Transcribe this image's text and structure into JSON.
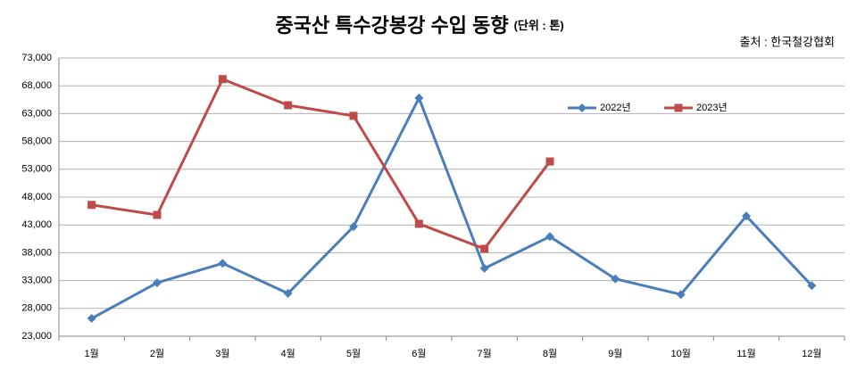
{
  "chart_data": {
    "type": "line",
    "title": "중국산 특수강봉강 수입 동향",
    "unit_label": "(단위 : 톤)",
    "source": "출처 : 한국철강협회",
    "categories": [
      "1월",
      "2월",
      "3월",
      "4월",
      "5월",
      "6월",
      "7월",
      "8월",
      "9월",
      "10월",
      "11월",
      "12월"
    ],
    "series": [
      {
        "name": "2022년",
        "color": "#4a7ebb",
        "marker": "diamond",
        "values": [
          26200,
          32600,
          36100,
          30700,
          42700,
          65800,
          35200,
          40900,
          33300,
          30500,
          44600,
          32100
        ]
      },
      {
        "name": "2023년",
        "color": "#be4b48",
        "marker": "square",
        "values": [
          46600,
          44800,
          69200,
          64500,
          62600,
          43200,
          38700,
          54400,
          null,
          null,
          null,
          null
        ]
      }
    ],
    "ylim": [
      23000,
      73000
    ],
    "yticks": [
      {
        "value": 23000,
        "label": "23,000"
      },
      {
        "value": 28000,
        "label": "28,000"
      },
      {
        "value": 33000,
        "label": "33,000"
      },
      {
        "value": 38000,
        "label": "38,000"
      },
      {
        "value": 43000,
        "label": "43,000"
      },
      {
        "value": 48000,
        "label": "48,000"
      },
      {
        "value": 53000,
        "label": "53,000"
      },
      {
        "value": 58000,
        "label": "58,000"
      },
      {
        "value": 63000,
        "label": "63,000"
      },
      {
        "value": 68000,
        "label": "68,000"
      },
      {
        "value": 73000,
        "label": "73,000"
      }
    ],
    "grid": true,
    "legend": "upper-right"
  }
}
